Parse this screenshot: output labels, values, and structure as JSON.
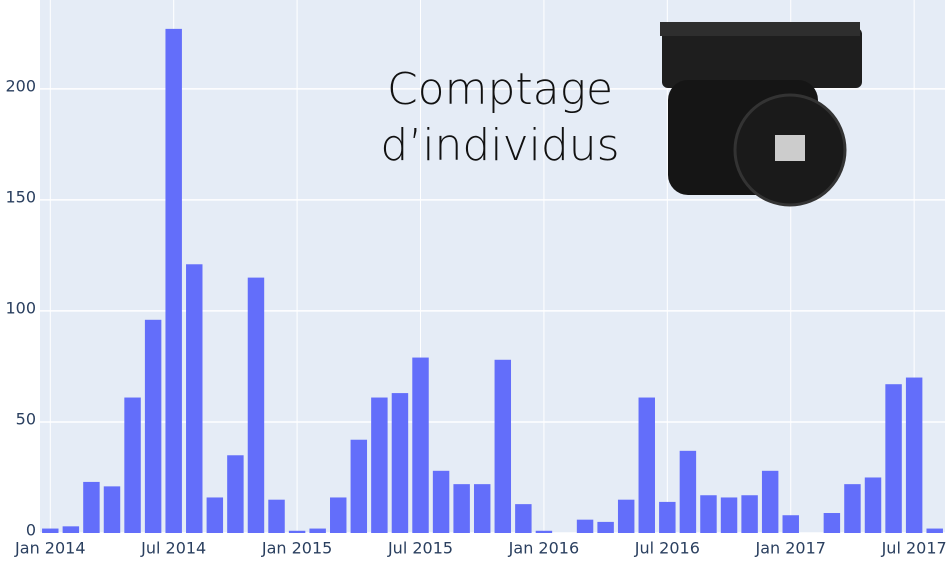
{
  "chart_data": {
    "type": "bar",
    "annotation": [
      "Comptage",
      "d’individus"
    ],
    "x": [
      "2014-01",
      "2014-02",
      "2014-03",
      "2014-04",
      "2014-05",
      "2014-06",
      "2014-07",
      "2014-08",
      "2014-09",
      "2014-10",
      "2014-11",
      "2014-12",
      "2015-01",
      "2015-02",
      "2015-03",
      "2015-04",
      "2015-05",
      "2015-06",
      "2015-07",
      "2015-08",
      "2015-09",
      "2015-10",
      "2015-11",
      "2015-12",
      "2016-01",
      "2016-02",
      "2016-03",
      "2016-04",
      "2016-05",
      "2016-06",
      "2016-07",
      "2016-08",
      "2016-09",
      "2016-10",
      "2016-11",
      "2016-12",
      "2017-01",
      "2017-02",
      "2017-03",
      "2017-04",
      "2017-05",
      "2017-06",
      "2017-07",
      "2017-08"
    ],
    "values": [
      2,
      3,
      23,
      21,
      61,
      96,
      227,
      121,
      16,
      35,
      115,
      15,
      1,
      2,
      16,
      42,
      61,
      63,
      79,
      28,
      22,
      22,
      78,
      13,
      1,
      0,
      6,
      5,
      15,
      61,
      14,
      37,
      17,
      16,
      17,
      28,
      8,
      0,
      9,
      22,
      25,
      67,
      70,
      2
    ],
    "color": "#636efa",
    "xticks": [
      {
        "value": "2014-01",
        "label": "Jan 2014"
      },
      {
        "value": "2014-07",
        "label": "Jul 2014"
      },
      {
        "value": "2015-01",
        "label": "Jan 2015"
      },
      {
        "value": "2015-07",
        "label": "Jul 2015"
      },
      {
        "value": "2016-01",
        "label": "Jan 2016"
      },
      {
        "value": "2016-07",
        "label": "Jul 2016"
      },
      {
        "value": "2017-01",
        "label": "Jan 2017"
      },
      {
        "value": "2017-07",
        "label": "Jul 2017"
      }
    ],
    "ylim": [
      0,
      240
    ],
    "yticks": [
      0,
      50,
      100,
      150,
      200
    ],
    "grid": true
  }
}
